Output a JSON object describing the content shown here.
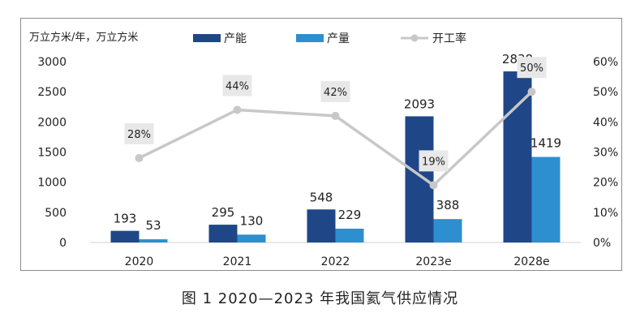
{
  "chart_data": {
    "type": "bar",
    "caption": "图 1  2020—2023 年我国氦气供应情况",
    "y_left_unit": "万立方米/年，万立方米",
    "categories": [
      "2020",
      "2021",
      "2022",
      "2023e",
      "2028e"
    ],
    "series": [
      {
        "name": "产能",
        "type": "bar",
        "axis": "left",
        "values": [
          193,
          295,
          548,
          2093,
          2838
        ]
      },
      {
        "name": "产量",
        "type": "bar",
        "axis": "left",
        "values": [
          53,
          130,
          229,
          388,
          1419
        ]
      },
      {
        "name": "开工率",
        "type": "line",
        "axis": "right",
        "values": [
          28,
          44,
          42,
          19,
          50
        ]
      }
    ],
    "y_left_ticks": [
      "0",
      "500",
      "1000",
      "1500",
      "2000",
      "2500",
      "3000"
    ],
    "y_right_ticks": [
      "0%",
      "10%",
      "20%",
      "30%",
      "40%",
      "50%",
      "60%"
    ],
    "ylim_left": [
      0,
      3000
    ],
    "ylim_right": [
      0,
      60
    ],
    "rate_labels": [
      "28%",
      "44%",
      "42%",
      "19%",
      "50%"
    ],
    "colors": {
      "capacity": "#1f4788",
      "output": "#2e8fd0",
      "rate": "#c8c8c8",
      "rate_label_bg": "#e8e8e8"
    },
    "legend_position": "top",
    "grid": false
  }
}
